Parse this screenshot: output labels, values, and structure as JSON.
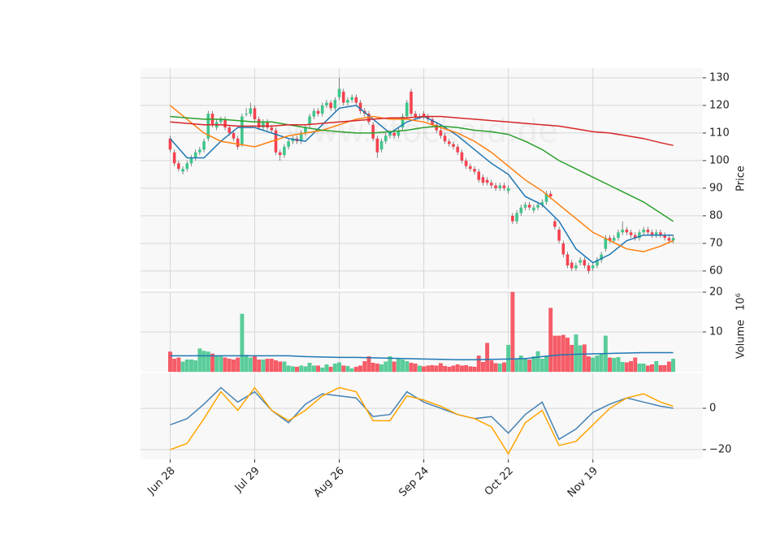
{
  "chart_data": [
    {
      "type": "candlestick",
      "ylabel": "Price",
      "watermark": "www.stockoid.de",
      "up_color": "#3fc58a",
      "down_color": "#f5424f",
      "xlim": [
        -7,
        126
      ],
      "ylim": [
        53.5,
        133.5
      ],
      "yticks": [
        60,
        70,
        80,
        90,
        100,
        110,
        120,
        130
      ],
      "grid": true,
      "open": [
        108,
        103,
        99,
        96,
        97,
        99,
        101,
        103,
        104,
        108,
        117,
        112,
        114,
        115,
        112,
        110,
        108,
        106,
        117,
        117,
        119,
        115,
        112,
        114,
        112,
        111,
        103,
        102,
        105,
        107,
        108,
        107,
        110,
        113,
        116,
        118,
        117,
        120,
        121,
        119,
        123,
        125,
        121,
        122,
        123,
        121,
        118,
        117,
        113,
        108,
        104,
        107,
        109,
        110,
        109,
        112,
        116,
        125,
        117,
        116,
        117,
        116,
        115,
        113,
        111,
        109,
        107,
        106,
        105,
        103,
        100,
        98,
        97,
        96,
        94,
        93,
        92,
        91,
        90,
        91,
        89,
        80,
        78,
        81,
        83,
        84,
        82,
        83,
        84,
        85,
        88,
        78,
        75,
        70,
        66,
        63,
        61,
        63,
        64,
        62,
        61,
        62,
        64,
        68,
        72,
        71,
        72,
        74,
        75,
        74,
        73,
        72,
        74,
        75,
        74,
        73,
        74,
        73,
        72,
        71
      ],
      "high": [
        109,
        104,
        100,
        98,
        100,
        102,
        104,
        105,
        108,
        118,
        118,
        115,
        116,
        116,
        113,
        111,
        109,
        117,
        119,
        121,
        120,
        116,
        115,
        115,
        113,
        112,
        104,
        106,
        108,
        109,
        109,
        111,
        113,
        117,
        119,
        119,
        121,
        122,
        122,
        123,
        130,
        126,
        123,
        124,
        124,
        122,
        119,
        118,
        114,
        109,
        108,
        110,
        111,
        111,
        112,
        117,
        122,
        126,
        118,
        117,
        118,
        117,
        116,
        114,
        112,
        110,
        108,
        107,
        106,
        104,
        101,
        99,
        98,
        97,
        95,
        94,
        93,
        92,
        92,
        92,
        91,
        81,
        82,
        84,
        85,
        85,
        84,
        85,
        86,
        89,
        89,
        79,
        76,
        71,
        67,
        64,
        63,
        65,
        65,
        63,
        63,
        65,
        67,
        73,
        73,
        73,
        75,
        78,
        76,
        75,
        74,
        75,
        76,
        76,
        75,
        75,
        75,
        74,
        73,
        73
      ],
      "low": [
        103,
        98,
        96,
        95,
        96,
        98,
        100,
        102,
        103,
        107,
        112,
        111,
        113,
        111,
        109,
        107,
        104,
        105,
        116,
        116,
        114,
        111,
        111,
        111,
        110,
        102,
        100,
        101,
        104,
        106,
        106,
        106,
        109,
        112,
        115,
        116,
        116,
        119,
        118,
        118,
        122,
        120,
        120,
        121,
        120,
        117,
        116,
        113,
        107,
        101,
        103,
        106,
        108,
        108,
        108,
        111,
        115,
        116,
        115,
        115,
        115,
        114,
        112,
        110,
        108,
        106,
        105,
        104,
        102,
        99,
        97,
        96,
        95,
        92,
        91,
        91,
        90,
        89,
        89,
        89,
        88,
        77,
        77,
        80,
        82,
        82,
        81,
        82,
        83,
        84,
        86,
        75,
        70,
        65,
        61,
        60,
        60,
        62,
        61,
        59,
        60,
        61,
        63,
        67,
        70,
        70,
        71,
        73,
        73,
        72,
        71,
        71,
        73,
        73,
        72,
        72,
        72,
        71,
        70,
        70
      ],
      "close": [
        104,
        99,
        97,
        97,
        99,
        101,
        103,
        104,
        107,
        117,
        113,
        114,
        115,
        112,
        110,
        108,
        105,
        116,
        117,
        119,
        115,
        112,
        114,
        112,
        111,
        103,
        102,
        105,
        107,
        108,
        107,
        110,
        112,
        116,
        118,
        117,
        120,
        121,
        119,
        122,
        126,
        121,
        122,
        123,
        121,
        118,
        117,
        114,
        108,
        103,
        107,
        109,
        110,
        109,
        111,
        116,
        121,
        117,
        116,
        116,
        116,
        115,
        113,
        111,
        109,
        107,
        106,
        105,
        103,
        100,
        98,
        97,
        96,
        93,
        92,
        92,
        91,
        90,
        91,
        90,
        90,
        78,
        81,
        83,
        84,
        83,
        83,
        84,
        85,
        88,
        87,
        76,
        71,
        66,
        62,
        61,
        62,
        64,
        62,
        60,
        62,
        64,
        66,
        72,
        71,
        72,
        74,
        75,
        74,
        73,
        72,
        74,
        75,
        74,
        73,
        74,
        73,
        72,
        71,
        72
      ],
      "lines": [
        {
          "color": "#1f77b4",
          "x": [
            0,
            4,
            8,
            12,
            16,
            20,
            24,
            28,
            32,
            36,
            40,
            44,
            48,
            52,
            56,
            60,
            64,
            68,
            72,
            76,
            80,
            84,
            88,
            92,
            96,
            100,
            104,
            108,
            112,
            116,
            119
          ],
          "values": [
            108,
            101,
            101,
            107,
            112,
            112,
            110,
            108,
            107,
            113,
            119,
            120,
            115,
            110,
            114,
            116,
            113,
            109,
            104,
            99,
            95,
            87,
            84,
            78,
            68,
            63,
            66,
            71,
            73,
            73,
            73
          ]
        },
        {
          "color": "#ff7f0e",
          "x": [
            0,
            4,
            8,
            12,
            16,
            20,
            24,
            28,
            32,
            36,
            40,
            44,
            48,
            52,
            56,
            60,
            64,
            68,
            72,
            76,
            80,
            84,
            88,
            92,
            96,
            100,
            104,
            108,
            112,
            116,
            119
          ],
          "values": [
            120,
            115,
            110,
            107,
            106,
            105,
            107,
            109,
            110,
            111,
            113,
            115,
            116,
            115,
            115,
            114,
            112,
            110,
            107,
            103,
            98,
            93,
            89,
            84,
            79,
            74,
            71,
            68,
            67,
            69,
            71
          ]
        },
        {
          "color": "#2ca02c",
          "x": [
            0,
            4,
            8,
            12,
            16,
            20,
            24,
            28,
            32,
            36,
            40,
            44,
            48,
            52,
            56,
            60,
            64,
            68,
            72,
            76,
            80,
            84,
            88,
            92,
            96,
            100,
            104,
            108,
            112,
            116,
            119
          ],
          "values": [
            116,
            115.5,
            115,
            115,
            114.5,
            114,
            114,
            113,
            112,
            111,
            110.5,
            110,
            110,
            110.5,
            111,
            112,
            112.5,
            112,
            111,
            110.5,
            109.5,
            107,
            104,
            100,
            97,
            94,
            91,
            88,
            85,
            81,
            78
          ]
        },
        {
          "color": "#d62728",
          "x": [
            0,
            4,
            8,
            12,
            16,
            20,
            24,
            28,
            32,
            36,
            40,
            44,
            48,
            52,
            56,
            60,
            64,
            68,
            72,
            76,
            80,
            84,
            88,
            92,
            96,
            100,
            104,
            108,
            112,
            116,
            119
          ],
          "values": [
            114,
            113.5,
            113,
            113,
            112.5,
            112.5,
            112.5,
            113,
            113,
            113.5,
            114,
            114.5,
            115,
            115.5,
            115.5,
            116,
            116,
            115.5,
            115,
            114.5,
            114,
            113.5,
            113,
            112.5,
            111.5,
            110.5,
            110,
            109,
            108,
            106.5,
            105.5
          ]
        }
      ]
    },
    {
      "type": "volume",
      "ylabel": "Volume",
      "yoffset_label": "10⁶",
      "xlim": [
        -7,
        126
      ],
      "ylim": [
        0,
        20
      ],
      "yticks": [
        10,
        20
      ],
      "grid": true,
      "values": [
        5,
        3.2,
        3.5,
        2.5,
        3,
        3,
        2.8,
        5.8,
        5.2,
        5,
        4.5,
        4,
        3.8,
        3.5,
        3.2,
        3,
        3.5,
        14.5,
        4.2,
        3.5,
        3.8,
        3,
        3,
        3.2,
        3.2,
        2.8,
        2.5,
        2.5,
        1.5,
        1.3,
        1.2,
        1.5,
        1.3,
        2.2,
        1.5,
        1.5,
        1,
        1.8,
        1.2,
        2,
        2.3,
        1.5,
        1.4,
        0.8,
        1.2,
        1.5,
        2.6,
        3.8,
        2.2,
        2,
        1.8,
        2.5,
        3.8,
        2.5,
        3.2,
        3,
        2.6,
        2.2,
        2,
        1.5,
        1.3,
        1.5,
        1.6,
        1.5,
        2.1,
        1.4,
        1.2,
        1.5,
        1.8,
        1.5,
        1.6,
        1.3,
        1.2,
        4,
        2.4,
        7.2,
        2.8,
        2.1,
        2,
        2.3,
        6.7,
        20,
        3.3,
        4,
        3.4,
        3,
        3.8,
        5.1,
        3.2,
        3.8,
        16,
        9,
        9,
        9.2,
        8.5,
        6.7,
        9.3,
        6.6,
        6.8,
        3.8,
        3.5,
        4,
        4.5,
        9,
        3.5,
        3.4,
        3.6,
        2.4,
        2.3,
        2.6,
        3.5,
        2,
        2,
        1.5,
        1.8,
        2.6,
        1.6,
        1.6,
        2.5,
        3.2
      ],
      "lines": [
        {
          "color": "#1f77b4",
          "x": [
            0,
            4,
            8,
            12,
            16,
            20,
            24,
            28,
            32,
            36,
            40,
            44,
            48,
            52,
            56,
            60,
            64,
            68,
            72,
            76,
            80,
            84,
            88,
            92,
            96,
            100,
            104,
            108,
            112,
            116,
            119
          ],
          "values": [
            4,
            4,
            4,
            4,
            4,
            4,
            4,
            4,
            3.8,
            3.7,
            3.6,
            3.6,
            3.5,
            3.4,
            3.3,
            3.2,
            3.1,
            3,
            3,
            3.1,
            3.2,
            3.3,
            3.8,
            4.2,
            4.4,
            4.5,
            4.6,
            4.7,
            4.8,
            4.8,
            4.8
          ]
        }
      ]
    },
    {
      "type": "line",
      "xlim": [
        -7,
        126
      ],
      "ylim": [
        -24.7,
        16.9
      ],
      "yticks": [
        {
          "value": -20,
          "label": "−20"
        },
        0
      ],
      "grid": true,
      "xticks": [
        {
          "value": 0,
          "label": "Jun 28"
        },
        {
          "value": 20,
          "label": "Jul 29"
        },
        {
          "value": 40,
          "label": "Aug 26"
        },
        {
          "value": 60,
          "label": "Sep 24"
        },
        {
          "value": 80,
          "label": "Oct 22"
        },
        {
          "value": 100,
          "label": "Nov 19"
        }
      ],
      "series": [
        {
          "color": "#4682b4",
          "x": [
            0,
            4,
            8,
            12,
            16,
            20,
            24,
            28,
            32,
            36,
            40,
            44,
            48,
            52,
            56,
            60,
            64,
            68,
            72,
            76,
            80,
            84,
            88,
            92,
            96,
            100,
            104,
            108,
            112,
            116,
            119
          ],
          "values": [
            -8,
            -5,
            2,
            10,
            3,
            8,
            -1,
            -7,
            2,
            7,
            6,
            5,
            -4,
            -3,
            8,
            3,
            0,
            -3,
            -5,
            -4,
            -12,
            -3,
            3,
            -15,
            -10,
            -2,
            2,
            5,
            3,
            1,
            0
          ]
        },
        {
          "color": "#ffa500",
          "x": [
            0,
            4,
            8,
            12,
            16,
            20,
            24,
            28,
            32,
            36,
            40,
            44,
            48,
            52,
            56,
            60,
            64,
            68,
            72,
            76,
            80,
            84,
            88,
            92,
            96,
            100,
            104,
            108,
            112,
            116,
            119
          ],
          "values": [
            -20,
            -17,
            -5,
            8,
            -1,
            10,
            -1,
            -6,
            -1,
            6,
            10,
            8,
            -6,
            -6,
            6,
            4,
            1,
            -3,
            -5,
            -9,
            -22,
            -7,
            -1,
            -18,
            -16,
            -8,
            0,
            5,
            7,
            3,
            1
          ]
        }
      ]
    }
  ]
}
